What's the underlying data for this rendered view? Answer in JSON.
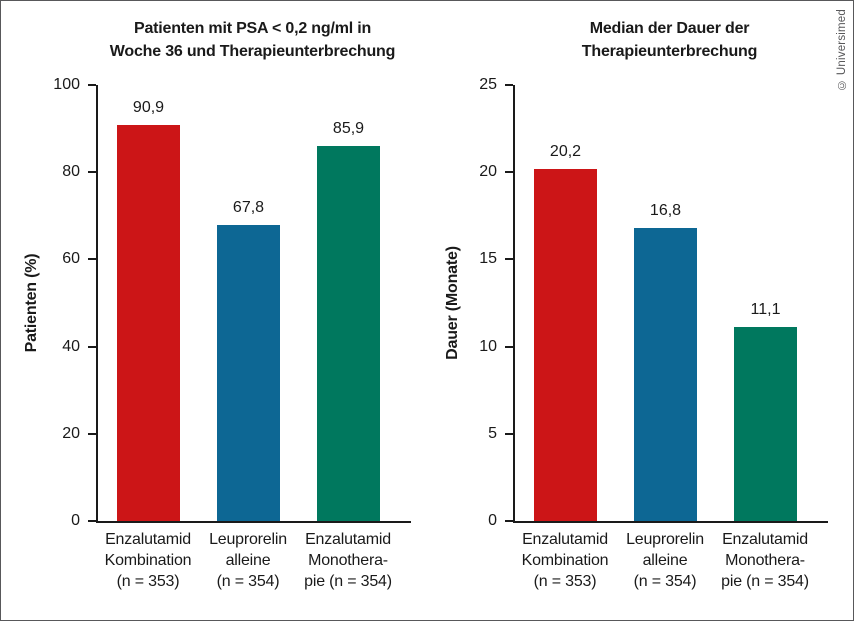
{
  "frame": {
    "copyright": "© Universimed"
  },
  "colors": {
    "bar_red": "#cc1517",
    "bar_blue": "#0d6794",
    "bar_green": "#00785e",
    "axis": "#1a1a1a",
    "border": "#58585a",
    "copyright_gray": "#58585a"
  },
  "chart_data": [
    {
      "type": "bar",
      "title_lines": [
        "Patienten mit PSA < 0,2 ng/ml in",
        "Woche 36 und Therapieunterbrechung"
      ],
      "ylabel": "Patienten (%)",
      "xlabel": "",
      "ylim": [
        0,
        100
      ],
      "yticks": [
        0,
        20,
        40,
        60,
        80,
        100
      ],
      "grid": false,
      "legend_position": "none",
      "categories": [
        [
          "Enzalutamid",
          "Kombination",
          "(n = 353)"
        ],
        [
          "Leuprorelin",
          "alleine",
          "(n = 354)"
        ],
        [
          "Enzalutamid",
          "Monothera-",
          "pie (n = 354)"
        ]
      ],
      "values": [
        90.9,
        67.8,
        85.9
      ],
      "value_labels": [
        "90,9",
        "67,8",
        "85,9"
      ],
      "bar_colors": [
        "#cc1517",
        "#0d6794",
        "#00785e"
      ]
    },
    {
      "type": "bar",
      "title_lines": [
        "Median der Dauer der",
        "Therapieunterbrechung"
      ],
      "ylabel": "Dauer (Monate)",
      "xlabel": "",
      "ylim": [
        0,
        25
      ],
      "yticks": [
        0,
        5,
        10,
        15,
        20,
        25
      ],
      "grid": false,
      "legend_position": "none",
      "categories": [
        [
          "Enzalutamid",
          "Kombination",
          "(n = 353)"
        ],
        [
          "Leuprorelin",
          "alleine",
          "(n = 354)"
        ],
        [
          "Enzalutamid",
          "Monothera-",
          "pie (n = 354)"
        ]
      ],
      "values": [
        20.2,
        16.8,
        11.1
      ],
      "value_labels": [
        "20,2",
        "16,8",
        "11,1"
      ],
      "bar_colors": [
        "#cc1517",
        "#0d6794",
        "#00785e"
      ]
    }
  ]
}
